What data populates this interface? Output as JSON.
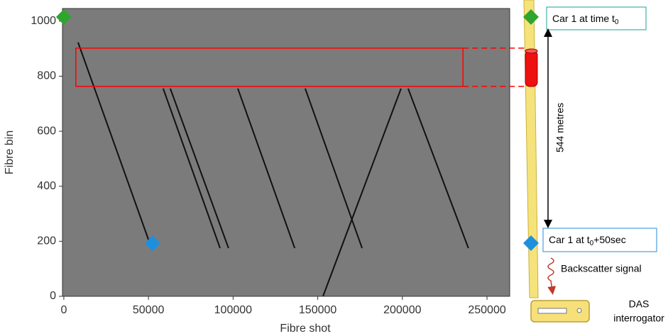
{
  "chart_data": {
    "type": "line",
    "x_label": "Fibre shot",
    "y_label": "Fibre bin",
    "xlim": [
      -800,
      263400
    ],
    "ylim": [
      0,
      1046
    ],
    "xticks": [
      0,
      50000,
      100000,
      150000,
      200000,
      250000
    ],
    "yticks": [
      0,
      200,
      400,
      600,
      800,
      1000
    ],
    "background": "#7b7b7b",
    "series": [
      {
        "color": "#111111",
        "x": [
          8400,
          50300
        ],
        "values": [
          923,
          201
        ]
      },
      {
        "color": "#111111",
        "x": [
          58700,
          92300
        ],
        "values": [
          755,
          175
        ]
      },
      {
        "color": "#111111",
        "x": [
          62900,
          97300
        ],
        "values": [
          755,
          175
        ]
      },
      {
        "color": "#111111",
        "x": [
          102800,
          136400
        ],
        "values": [
          755,
          175
        ]
      },
      {
        "color": "#111111",
        "x": [
          142600,
          176200
        ],
        "values": [
          755,
          175
        ]
      },
      {
        "color": "#111111",
        "x": [
          153100,
          199200
        ],
        "values": [
          0,
          755
        ]
      },
      {
        "color": "#111111",
        "x": [
          203400,
          239000
        ],
        "values": [
          755,
          175
        ]
      }
    ],
    "markers": [
      {
        "x": 0,
        "y": 1015,
        "color": "#2ea52e"
      },
      {
        "x": 52400,
        "y": 193,
        "color": "#1e8fdc"
      }
    ],
    "highlight": {
      "x": [
        7100,
        235800
      ],
      "y": [
        763,
        902
      ],
      "color": "#ff0000"
    }
  },
  "diagram": {
    "start_label": {
      "main": "Car 1 at time t",
      "sub": "0"
    },
    "end_label": {
      "main": "Car 1 at t",
      "sub": "0",
      "rest": "+50sec"
    },
    "distance": "544 metres",
    "signal": "Backscatter signal",
    "device": [
      "DAS",
      "interrogator"
    ]
  }
}
